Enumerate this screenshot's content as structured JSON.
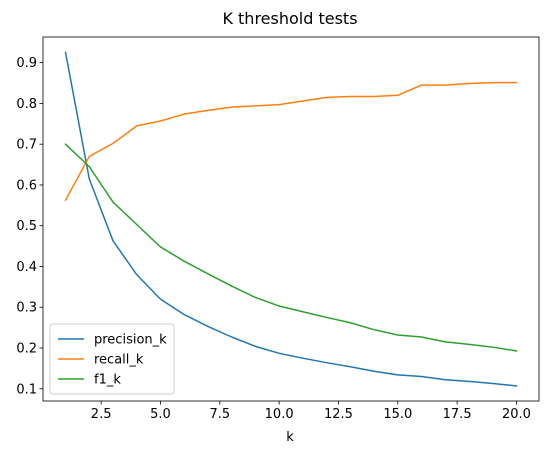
{
  "chart_data": {
    "type": "line",
    "title": "K threshold tests",
    "xlabel": "k",
    "ylabel": "",
    "xlim": [
      0.05,
      20.95
    ],
    "ylim": [
      0.07,
      0.963
    ],
    "xticks": [
      2.5,
      5.0,
      7.5,
      10.0,
      12.5,
      15.0,
      17.5,
      20.0
    ],
    "xtick_labels": [
      "2.5",
      "5.0",
      "7.5",
      "10.0",
      "12.5",
      "15.0",
      "17.5",
      "20.0"
    ],
    "yticks": [
      0.1,
      0.2,
      0.3,
      0.4,
      0.5,
      0.6,
      0.7,
      0.8,
      0.9
    ],
    "ytick_labels": [
      "0.1",
      "0.2",
      "0.3",
      "0.4",
      "0.5",
      "0.6",
      "0.7",
      "0.8",
      "0.9"
    ],
    "grid": false,
    "legend_position": "lower-left",
    "x": [
      1,
      2,
      3,
      4,
      5,
      6,
      7,
      8,
      9,
      10,
      11,
      12,
      13,
      14,
      15,
      16,
      17,
      18,
      19,
      20
    ],
    "series": [
      {
        "name": "precision_k",
        "color": "#1f77b4",
        "values": [
          0.925,
          0.615,
          0.463,
          0.38,
          0.32,
          0.282,
          0.253,
          0.227,
          0.204,
          0.187,
          0.175,
          0.164,
          0.154,
          0.143,
          0.134,
          0.13,
          0.122,
          0.118,
          0.113,
          0.107
        ]
      },
      {
        "name": "recall_k",
        "color": "#ff7f0e",
        "values": [
          0.563,
          0.67,
          0.702,
          0.745,
          0.757,
          0.774,
          0.783,
          0.791,
          0.794,
          0.797,
          0.806,
          0.815,
          0.817,
          0.817,
          0.82,
          0.845,
          0.845,
          0.849,
          0.851,
          0.851
        ]
      },
      {
        "name": "f1_k",
        "color": "#2ca02c",
        "values": [
          0.7,
          0.645,
          0.558,
          0.503,
          0.448,
          0.413,
          0.382,
          0.352,
          0.324,
          0.303,
          0.289,
          0.275,
          0.262,
          0.245,
          0.232,
          0.227,
          0.215,
          0.209,
          0.202,
          0.193
        ]
      }
    ]
  }
}
